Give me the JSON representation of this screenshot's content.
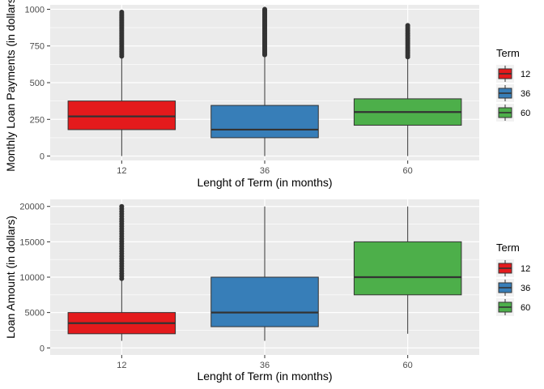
{
  "chart_data": [
    {
      "type": "boxplot",
      "xlabel": "Lenght of Term (in months)",
      "ylabel": "Monthly Loan Payments (in dollars)",
      "ylim": [
        -30,
        1030
      ],
      "yticks": [
        0,
        250,
        500,
        750,
        1000
      ],
      "categories": [
        "12",
        "36",
        "60"
      ],
      "legend": {
        "title": "Term",
        "position": "right"
      },
      "series": [
        {
          "name": "12",
          "color": "#e41a1c",
          "min": 0,
          "q1": 180,
          "median": 270,
          "q3": 375,
          "whisker_high": 670,
          "outliers_from": 680,
          "outliers_to": 980,
          "outlier_count": 28
        },
        {
          "name": "36",
          "color": "#377eb8",
          "min": 0,
          "q1": 125,
          "median": 180,
          "q3": 345,
          "whisker_high": 685,
          "outliers_from": 690,
          "outliers_to": 1000,
          "outlier_count": 40
        },
        {
          "name": "60",
          "color": "#4daf4a",
          "min": 0,
          "q1": 210,
          "median": 300,
          "q3": 390,
          "whisker_high": 665,
          "outliers_from": 675,
          "outliers_to": 890,
          "outlier_count": 20
        }
      ]
    },
    {
      "type": "boxplot",
      "xlabel": "Lenght of Term (in months)",
      "ylabel": "Loan Amount (in dollars)",
      "ylim": [
        -1000,
        21000
      ],
      "yticks": [
        0,
        5000,
        10000,
        15000,
        20000
      ],
      "categories": [
        "12",
        "36",
        "60"
      ],
      "legend": {
        "title": "Term",
        "position": "right"
      },
      "series": [
        {
          "name": "12",
          "color": "#e41a1c",
          "min": 1000,
          "q1": 2000,
          "median": 3500,
          "q3": 5000,
          "whisker_high": 9500,
          "outliers_from": 9800,
          "outliers_to": 20000,
          "outlier_count": 30
        },
        {
          "name": "36",
          "color": "#377eb8",
          "min": 1000,
          "q1": 3000,
          "median": 5000,
          "q3": 10000,
          "whisker_high": 20000,
          "outliers_from": null,
          "outliers_to": null,
          "outlier_count": 0
        },
        {
          "name": "60",
          "color": "#4daf4a",
          "min": 2000,
          "q1": 7500,
          "median": 10000,
          "q3": 15000,
          "whisker_high": 20000,
          "outliers_from": null,
          "outliers_to": null,
          "outlier_count": 0
        }
      ]
    }
  ]
}
